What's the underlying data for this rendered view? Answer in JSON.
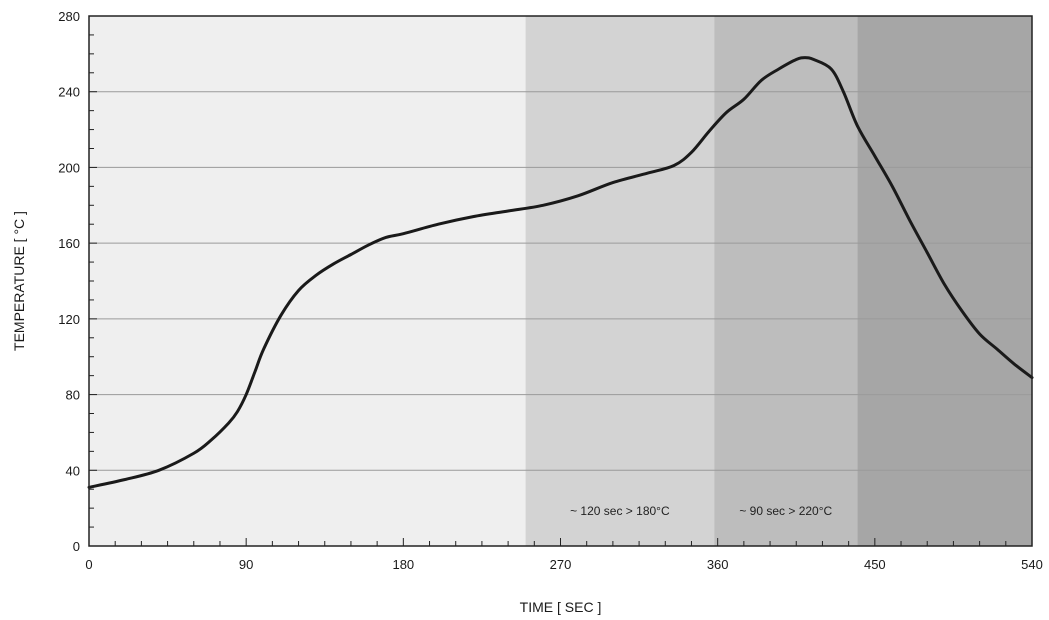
{
  "chart_data": {
    "type": "line",
    "xlabel": "TIME [ SEC ]",
    "ylabel": "TEMPERATURE [ °C ]",
    "xlim": [
      0,
      540
    ],
    "ylim": [
      0,
      280
    ],
    "x_ticks": [
      0,
      90,
      180,
      270,
      360,
      450,
      540
    ],
    "y_ticks": [
      0,
      40,
      80,
      120,
      160,
      200,
      240,
      280
    ],
    "grid": "horizontal",
    "shaded_regions": [
      {
        "x_start": 0,
        "x_end": 250,
        "color": "#efefef",
        "label": ""
      },
      {
        "x_start": 250,
        "x_end": 358,
        "color": "#d3d3d3",
        "label": "~ 120 sec > 180°C"
      },
      {
        "x_start": 358,
        "x_end": 440,
        "color": "#bdbdbd",
        "label": "~ 90 sec > 220°C"
      },
      {
        "x_start": 440,
        "x_end": 540,
        "color": "#a6a6a6",
        "label": ""
      }
    ],
    "series": [
      {
        "color": "#1a1a1a",
        "points": [
          [
            0,
            31
          ],
          [
            20,
            35
          ],
          [
            40,
            40
          ],
          [
            60,
            49
          ],
          [
            70,
            56
          ],
          [
            80,
            65
          ],
          [
            85,
            71
          ],
          [
            90,
            80
          ],
          [
            95,
            92
          ],
          [
            100,
            104
          ],
          [
            110,
            122
          ],
          [
            120,
            135
          ],
          [
            130,
            143
          ],
          [
            140,
            149
          ],
          [
            150,
            154
          ],
          [
            160,
            159
          ],
          [
            170,
            163
          ],
          [
            180,
            165
          ],
          [
            200,
            170
          ],
          [
            220,
            174
          ],
          [
            240,
            177
          ],
          [
            260,
            180
          ],
          [
            280,
            185
          ],
          [
            300,
            192
          ],
          [
            320,
            197
          ],
          [
            335,
            201
          ],
          [
            345,
            208
          ],
          [
            355,
            219
          ],
          [
            365,
            229
          ],
          [
            375,
            236
          ],
          [
            385,
            246
          ],
          [
            395,
            252
          ],
          [
            405,
            257
          ],
          [
            410,
            258
          ],
          [
            415,
            257
          ],
          [
            425,
            252
          ],
          [
            432,
            240
          ],
          [
            440,
            222
          ],
          [
            450,
            206
          ],
          [
            460,
            190
          ],
          [
            470,
            172
          ],
          [
            480,
            155
          ],
          [
            490,
            138
          ],
          [
            500,
            124
          ],
          [
            510,
            112
          ],
          [
            520,
            104
          ],
          [
            530,
            96
          ],
          [
            540,
            89
          ]
        ]
      }
    ]
  },
  "colors": {
    "background": "#ffffff",
    "gridline": "#9a9a9a",
    "axis": "#222222",
    "line": "#1a1a1a"
  }
}
